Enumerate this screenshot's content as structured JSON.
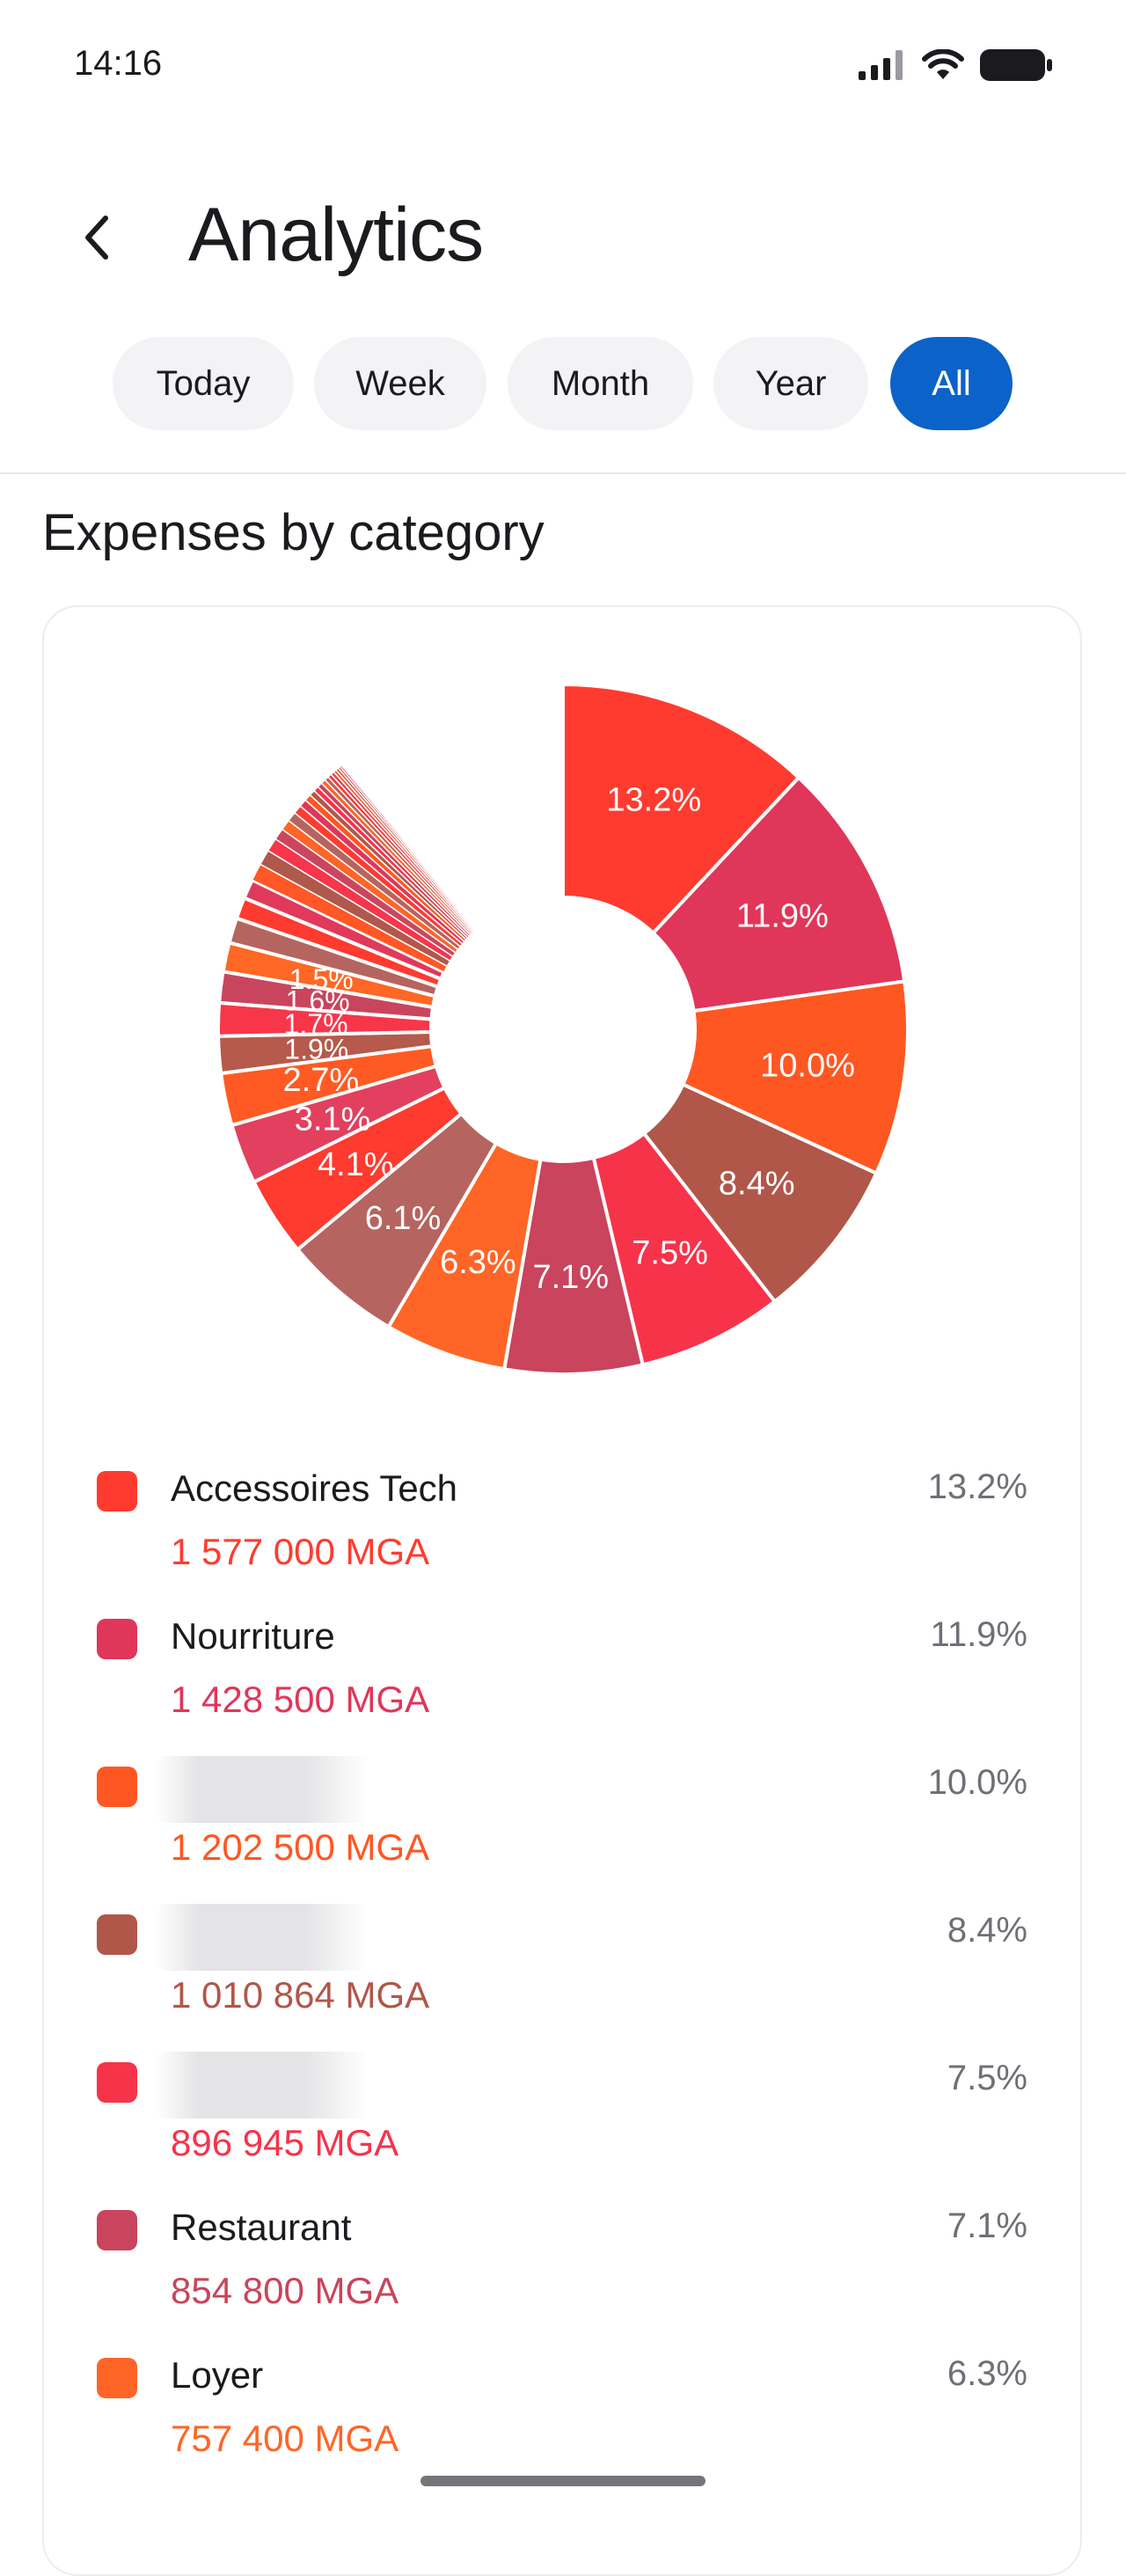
{
  "status_bar": {
    "time": "14:16"
  },
  "header": {
    "title": "Analytics"
  },
  "tabs": [
    {
      "label": "Today",
      "active": false
    },
    {
      "label": "Week",
      "active": false
    },
    {
      "label": "Month",
      "active": false
    },
    {
      "label": "Year",
      "active": false
    },
    {
      "label": "All",
      "active": true
    }
  ],
  "section": {
    "title": "Expenses by category"
  },
  "chart_data": {
    "type": "pie",
    "style": "donut",
    "slices": [
      {
        "label": "Accessoires Tech",
        "percent": 13.2,
        "color": "#ff3b30"
      },
      {
        "label": "Nourriture",
        "percent": 11.9,
        "color": "#e0365a"
      },
      {
        "label": "",
        "percent": 10.0,
        "color": "#ff5722"
      },
      {
        "label": "",
        "percent": 8.4,
        "color": "#b0574a"
      },
      {
        "label": "",
        "percent": 7.5,
        "color": "#f7334a"
      },
      {
        "label": "Restaurant",
        "percent": 7.1,
        "color": "#c9445c"
      },
      {
        "label": "Loyer",
        "percent": 6.3,
        "color": "#ff6526"
      },
      {
        "label": "",
        "percent": 6.1,
        "color": "#b5645f"
      },
      {
        "label": "",
        "percent": 4.1,
        "color": "#ff3a2e"
      },
      {
        "label": "",
        "percent": 3.1,
        "color": "#e2405e"
      },
      {
        "label": "",
        "percent": 2.7,
        "color": "#ff5a24"
      },
      {
        "label": "",
        "percent": 1.9,
        "color": "#b55a4c"
      },
      {
        "label": "",
        "percent": 1.7,
        "color": "#f8364a"
      },
      {
        "label": "",
        "percent": 1.6,
        "color": "#c9455d"
      },
      {
        "label": "",
        "percent": 1.5,
        "color": "#ff6724"
      },
      {
        "label": "",
        "percent": 1.3,
        "color": "#b5655f"
      },
      {
        "label": "",
        "percent": 1.1,
        "color": "#ff3a30"
      },
      {
        "label": "",
        "percent": 1.0,
        "color": "#e0395c"
      },
      {
        "label": "",
        "percent": 0.9,
        "color": "#ff5725"
      },
      {
        "label": "",
        "percent": 0.8,
        "color": "#b0584b"
      },
      {
        "label": "",
        "percent": 0.7,
        "color": "#f7354b"
      },
      {
        "label": "",
        "percent": 0.6,
        "color": "#ca465e"
      },
      {
        "label": "",
        "percent": 0.55,
        "color": "#ff6526"
      },
      {
        "label": "",
        "percent": 0.5,
        "color": "#b5645f"
      },
      {
        "label": "",
        "percent": 0.45,
        "color": "#ff3b30"
      },
      {
        "label": "",
        "percent": 0.4,
        "color": "#e0365a"
      },
      {
        "label": "",
        "percent": 0.35,
        "color": "#ff5722"
      },
      {
        "label": "",
        "percent": 0.3,
        "color": "#b0574a"
      },
      {
        "label": "",
        "percent": 0.28,
        "color": "#f7334a"
      },
      {
        "label": "",
        "percent": 0.26,
        "color": "#c9445c"
      },
      {
        "label": "",
        "percent": 0.24,
        "color": "#ff6526"
      },
      {
        "label": "",
        "percent": 0.22,
        "color": "#b5645f"
      },
      {
        "label": "",
        "percent": 0.2,
        "color": "#ff3a2e"
      },
      {
        "label": "",
        "percent": 0.18,
        "color": "#e2405e"
      },
      {
        "label": "",
        "percent": 0.16,
        "color": "#ff5a24"
      },
      {
        "label": "",
        "percent": 0.14,
        "color": "#b55a4c"
      },
      {
        "label": "",
        "percent": 0.12,
        "color": "#f8364a"
      },
      {
        "label": "",
        "percent": 0.1,
        "color": "#c9455d"
      }
    ]
  },
  "legend": [
    {
      "name": "Accessoires Tech",
      "amount": "1 577 000 MGA",
      "percent": "13.2%",
      "color": "#ff3b30",
      "redacted": false
    },
    {
      "name": "Nourriture",
      "amount": "1 428 500 MGA",
      "percent": "11.9%",
      "color": "#e0365a",
      "redacted": false
    },
    {
      "name": "",
      "amount": "1 202 500 MGA",
      "percent": "10.0%",
      "color": "#ff5722",
      "redacted": true
    },
    {
      "name": "",
      "amount": "1 010 864 MGA",
      "percent": "8.4%",
      "color": "#b0574a",
      "redacted": true
    },
    {
      "name": "",
      "amount": "896 945 MGA",
      "percent": "7.5%",
      "color": "#f7334a",
      "redacted": true
    },
    {
      "name": "Restaurant",
      "amount": "854 800 MGA",
      "percent": "7.1%",
      "color": "#c9445c",
      "redacted": false
    },
    {
      "name": "Loyer",
      "amount": "757 400 MGA",
      "percent": "6.3%",
      "color": "#ff6526",
      "redacted": false
    }
  ]
}
